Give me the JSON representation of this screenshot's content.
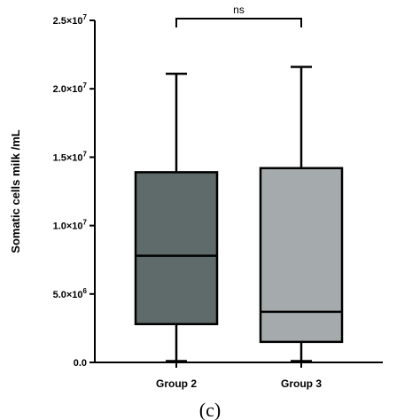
{
  "chart_data": {
    "type": "box",
    "ylabel": "Somatic cells milk /mL",
    "ylim": [
      0,
      25000000
    ],
    "yticks": [
      {
        "value": 0,
        "label": "0.0",
        "exp": ""
      },
      {
        "value": 5000000,
        "label": "5.0×10",
        "exp": "6"
      },
      {
        "value": 10000000,
        "label": "1.0×10",
        "exp": "7"
      },
      {
        "value": 15000000,
        "label": "1.5×10",
        "exp": "7"
      },
      {
        "value": 20000000,
        "label": "2.0×10",
        "exp": "7"
      },
      {
        "value": 25000000,
        "label": "2.5×10",
        "exp": "7"
      }
    ],
    "categories": [
      "Group 2",
      "Group 3"
    ],
    "boxes": [
      {
        "category": "Group 2",
        "min": 100000,
        "q1": 2800000,
        "median": 7800000,
        "q3": 13900000,
        "max": 21100000,
        "color": "#5f6a6a"
      },
      {
        "category": "Group 3",
        "min": 100000,
        "q1": 1500000,
        "median": 3700000,
        "q3": 14200000,
        "max": 21600000,
        "color": "#a5abad"
      }
    ],
    "significance": {
      "label": "ns",
      "between": [
        "Group 2",
        "Group 3"
      ]
    },
    "panel_label": "(c)"
  }
}
